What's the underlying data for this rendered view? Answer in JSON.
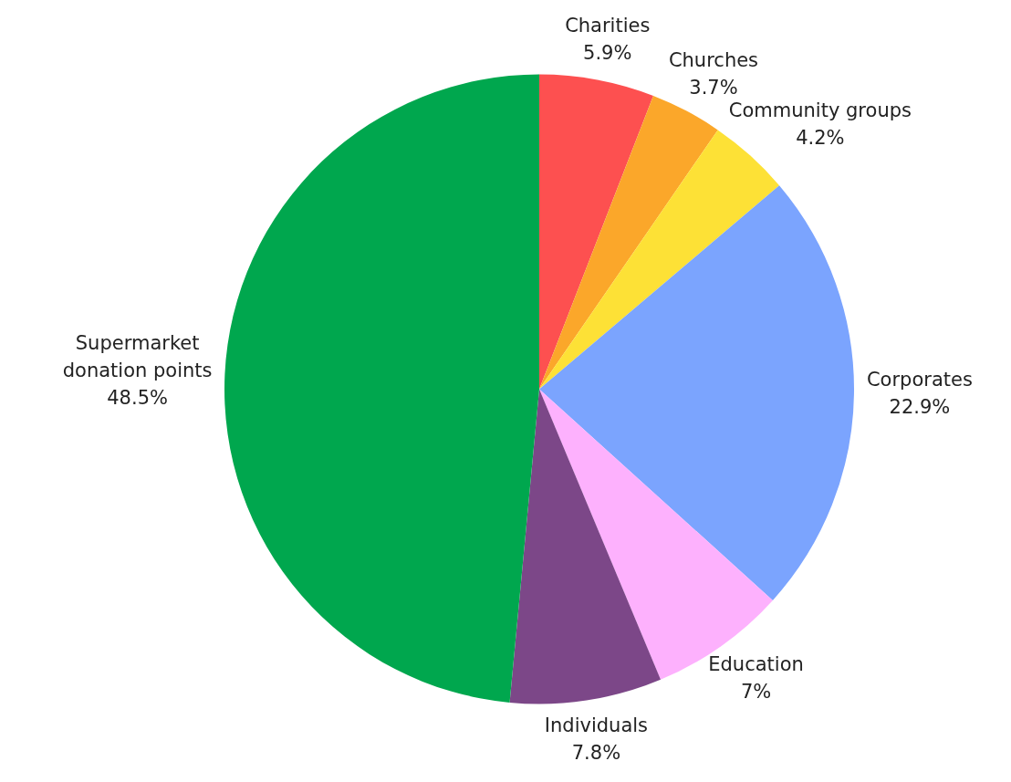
{
  "chart_data": {
    "type": "pie",
    "categories": [
      "Charities",
      "Churches",
      "Community groups",
      "Corporates",
      "Education",
      "Individuals",
      "Supermarket donation points"
    ],
    "values": [
      5.9,
      3.7,
      4.2,
      22.9,
      7,
      7.8,
      48.5
    ],
    "value_labels": [
      "5.9%",
      "3.7%",
      "4.2%",
      "22.9%",
      "7%",
      "7.8%",
      "48.5%"
    ],
    "colors": [
      "#fd5050",
      "#fba72a",
      "#fde136",
      "#7ba4fe",
      "#fdb1fd",
      "#7c4788",
      "#00a74e"
    ],
    "legend": false
  }
}
